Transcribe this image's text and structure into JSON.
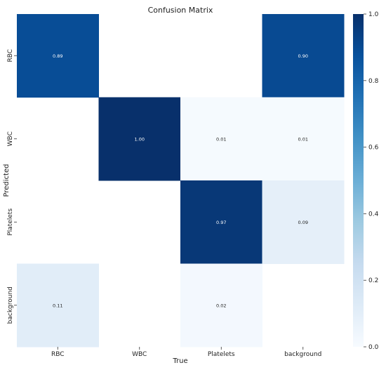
{
  "chart_data": {
    "type": "heatmap",
    "title": "Confusion Matrix",
    "xlabel": "True",
    "ylabel": "Predicted",
    "x_categories": [
      "RBC",
      "WBC",
      "Platelets",
      "background"
    ],
    "y_categories": [
      "RBC",
      "WBC",
      "Platelets",
      "background"
    ],
    "values": [
      [
        0.89,
        null,
        null,
        0.9
      ],
      [
        null,
        1.0,
        0.01,
        0.01
      ],
      [
        null,
        null,
        0.97,
        0.09
      ],
      [
        0.11,
        null,
        0.02,
        null
      ]
    ],
    "cell_labels": [
      [
        "0.89",
        "",
        "",
        "0.90"
      ],
      [
        "",
        "1.00",
        "0.01",
        "0.01"
      ],
      [
        "",
        "",
        "0.97",
        "0.09"
      ],
      [
        "0.11",
        "",
        "0.02",
        ""
      ]
    ],
    "colorbar": {
      "range": [
        0.0,
        1.0
      ],
      "ticks": [
        "0.0",
        "0.2",
        "0.4",
        "0.6",
        "0.8",
        "1.0"
      ],
      "colormap": "Blues"
    },
    "grid": false,
    "legend": "colorbar-right"
  }
}
